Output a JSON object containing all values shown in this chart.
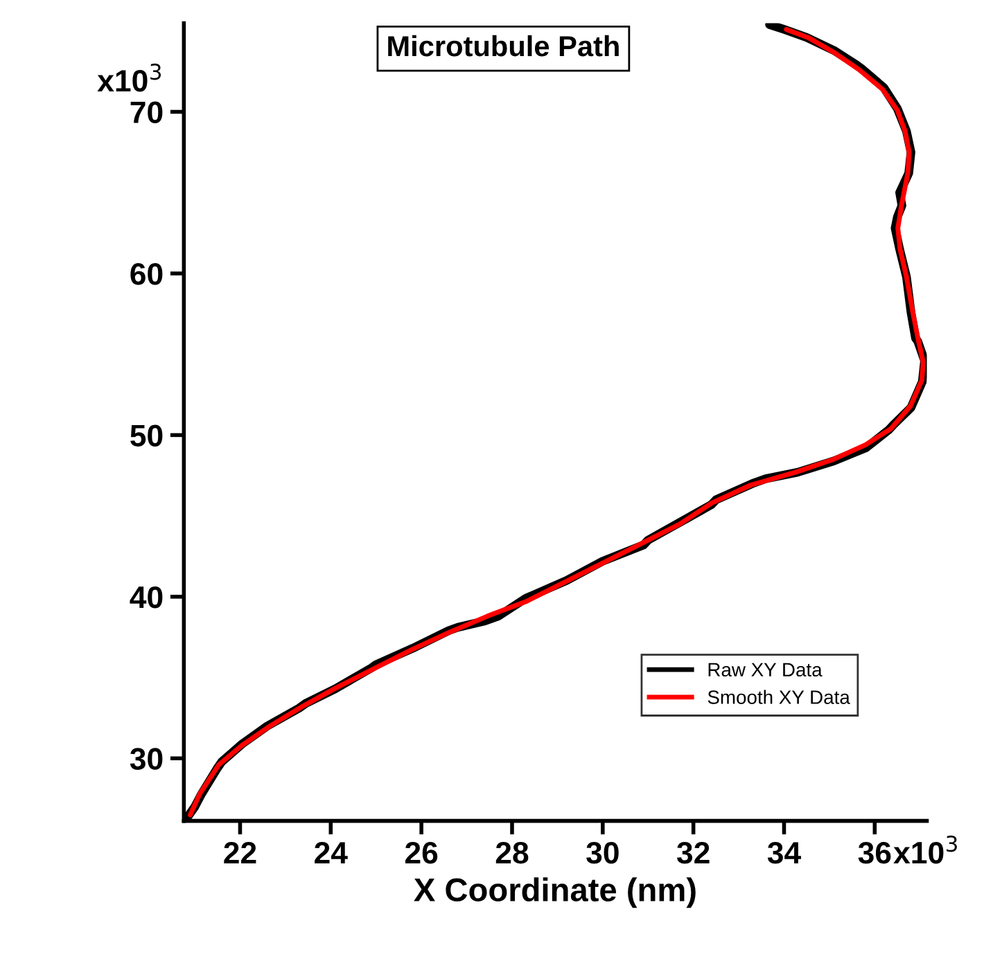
{
  "chart_data": {
    "type": "line",
    "title": "Microtubule Path",
    "xlabel": "X Coordinate (nm)",
    "xlim": [
      20.76,
      37.15
    ],
    "ylim": [
      26.13,
      75.48
    ],
    "xticks": [
      22,
      24,
      26,
      28,
      30,
      32,
      34,
      36
    ],
    "yticks": [
      30,
      40,
      50,
      60,
      70
    ],
    "annotations": [
      "x10$^{3}$",
      "x10$^{3}$"
    ],
    "legend": "bottom right",
    "grid": false,
    "series": [
      {
        "name": "Raw XY Data",
        "color": "#000000",
        "x": [
          20.8,
          21.0,
          21.15,
          21.5,
          21.6,
          22.05,
          22.6,
          23.3,
          23.45,
          24.1,
          24.9,
          25.0,
          25.8,
          26.6,
          26.8,
          27.4,
          27.7,
          28.3,
          29.2,
          30.0,
          30.9,
          31.0,
          31.7,
          32.4,
          32.5,
          33.3,
          33.6,
          34.3,
          35.1,
          35.8,
          36.3,
          36.4,
          36.8,
          37.05,
          37.1,
          36.95,
          36.9,
          36.8,
          36.7,
          36.55,
          36.45,
          36.5,
          36.6,
          36.55,
          36.75,
          36.8,
          36.7,
          36.5,
          36.2,
          35.7,
          35.6,
          35.1,
          34.5,
          34.0,
          33.68
        ],
        "values": [
          26.2,
          27.0,
          27.8,
          29.4,
          29.8,
          30.9,
          32.0,
          33.1,
          33.4,
          34.3,
          35.6,
          35.8,
          36.8,
          37.9,
          38.1,
          38.5,
          38.8,
          39.9,
          41.0,
          42.2,
          43.2,
          43.5,
          44.6,
          45.7,
          46.0,
          47.0,
          47.3,
          47.7,
          48.4,
          49.2,
          50.3,
          50.6,
          51.7,
          53.3,
          54.6,
          55.8,
          56.0,
          57.6,
          59.8,
          61.5,
          62.8,
          63.5,
          64.2,
          65.0,
          66.2,
          67.5,
          68.8,
          70.2,
          71.5,
          72.7,
          72.9,
          73.8,
          74.6,
          75.1,
          75.4
        ]
      },
      {
        "name": "Smooth XY Data",
        "color": "#ff0000",
        "x": [
          20.9,
          21.11,
          21.53,
          22.04,
          22.66,
          23.37,
          24.08,
          24.92,
          25.77,
          26.62,
          27.46,
          28.31,
          29.16,
          30.01,
          30.86,
          31.7,
          32.41,
          33.26,
          34.25,
          35.09,
          35.8,
          36.36,
          36.79,
          37.04,
          37.07,
          36.96,
          36.84,
          36.7,
          36.56,
          36.51,
          36.59,
          36.73,
          36.76,
          36.67,
          36.5,
          36.17,
          35.66,
          35.09,
          34.53,
          34.05
        ],
        "values": [
          26.5,
          27.8,
          29.6,
          30.8,
          32.0,
          33.2,
          34.3,
          35.5,
          36.7,
          37.8,
          38.8,
          39.7,
          40.9,
          42.1,
          43.3,
          44.5,
          45.8,
          46.9,
          47.7,
          48.5,
          49.4,
          50.4,
          51.8,
          53.4,
          54.5,
          55.9,
          57.6,
          59.8,
          61.5,
          62.8,
          64.2,
          66.2,
          67.5,
          68.8,
          70.1,
          71.4,
          72.6,
          73.7,
          74.6,
          75.1
        ]
      }
    ]
  }
}
